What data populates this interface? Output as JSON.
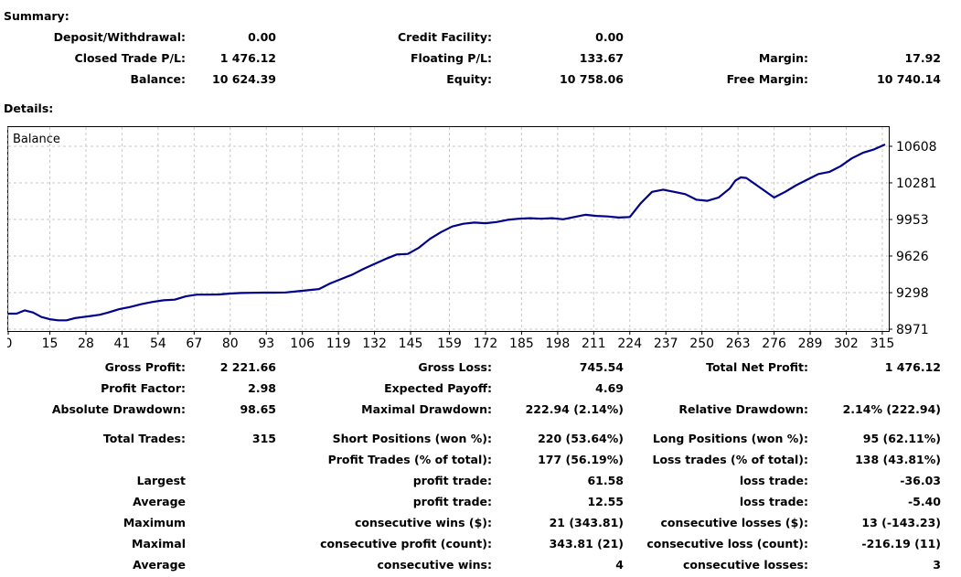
{
  "summary": {
    "heading": "Summary:",
    "deposit_withdrawal": {
      "label": "Deposit/Withdrawal:",
      "value": "0.00"
    },
    "credit_facility": {
      "label": "Credit Facility:",
      "value": "0.00"
    },
    "closed_trade_pl": {
      "label": "Closed Trade P/L:",
      "value": "1 476.12"
    },
    "floating_pl": {
      "label": "Floating P/L:",
      "value": "133.67"
    },
    "margin": {
      "label": "Margin:",
      "value": "17.92"
    },
    "balance": {
      "label": "Balance:",
      "value": "10 624.39"
    },
    "equity": {
      "label": "Equity:",
      "value": "10 758.06"
    },
    "free_margin": {
      "label": "Free Margin:",
      "value": "10 740.14"
    }
  },
  "details": {
    "heading": "Details:",
    "gross_profit": {
      "label": "Gross Profit:",
      "value": "2 221.66"
    },
    "gross_loss": {
      "label": "Gross Loss:",
      "value": "745.54"
    },
    "total_net_profit": {
      "label": "Total Net Profit:",
      "value": "1 476.12"
    },
    "profit_factor": {
      "label": "Profit Factor:",
      "value": "2.98"
    },
    "expected_payoff": {
      "label": "Expected Payoff:",
      "value": "4.69"
    },
    "absolute_drawdown": {
      "label": "Absolute Drawdown:",
      "value": "98.65"
    },
    "maximal_drawdown": {
      "label": "Maximal Drawdown:",
      "value": "222.94 (2.14%)"
    },
    "relative_drawdown": {
      "label": "Relative Drawdown:",
      "value": "2.14% (222.94)"
    },
    "total_trades": {
      "label": "Total Trades:",
      "value": "315"
    },
    "short_positions": {
      "label": "Short Positions (won %):",
      "value": "220 (53.64%)"
    },
    "long_positions": {
      "label": "Long Positions (won %):",
      "value": "95 (62.11%)"
    },
    "profit_trades": {
      "label": "Profit Trades (% of total):",
      "value": "177 (56.19%)"
    },
    "loss_trades": {
      "label": "Loss trades (% of total):",
      "value": "138 (43.81%)"
    },
    "largest": {
      "label": "Largest",
      "profit_label": "profit trade:",
      "profit_value": "61.58",
      "loss_label": "loss trade:",
      "loss_value": "-36.03"
    },
    "average": {
      "label": "Average",
      "profit_label": "profit trade:",
      "profit_value": "12.55",
      "loss_label": "loss trade:",
      "loss_value": "-5.40"
    },
    "maximum": {
      "label": "Maximum",
      "profit_label": "consecutive wins ($):",
      "profit_value": "21 (343.81)",
      "loss_label": "consecutive losses ($):",
      "loss_value": "13 (-143.23)"
    },
    "maximal": {
      "label": "Maximal",
      "profit_label": "consecutive profit (count):",
      "profit_value": "343.81 (21)",
      "loss_label": "consecutive loss (count):",
      "loss_value": "-216.19 (11)"
    },
    "average_consec": {
      "label": "Average",
      "profit_label": "consecutive wins:",
      "profit_value": "4",
      "loss_label": "consecutive losses:",
      "loss_value": "3"
    }
  },
  "chart_data": {
    "type": "line",
    "legend": "Balance",
    "series": [
      {
        "name": "Balance",
        "color": "#00008b"
      }
    ],
    "x": [
      0,
      3,
      6,
      9,
      12,
      15,
      18,
      21,
      24,
      27,
      30,
      33,
      36,
      40,
      44,
      48,
      52,
      56,
      60,
      64,
      68,
      72,
      76,
      80,
      84,
      88,
      92,
      96,
      100,
      104,
      108,
      112,
      116,
      120,
      124,
      128,
      132,
      136,
      140,
      144,
      148,
      152,
      156,
      160,
      164,
      168,
      172,
      176,
      180,
      184,
      188,
      192,
      196,
      200,
      204,
      208,
      212,
      216,
      220,
      224,
      228,
      232,
      236,
      240,
      244,
      248,
      252,
      256,
      260,
      262,
      264,
      266,
      268,
      272,
      276,
      280,
      284,
      288,
      292,
      296,
      300,
      304,
      308,
      312,
      316
    ],
    "y": [
      9110,
      9110,
      9140,
      9120,
      9080,
      9060,
      9050,
      9050,
      9070,
      9080,
      9090,
      9100,
      9120,
      9150,
      9170,
      9195,
      9215,
      9230,
      9235,
      9265,
      9280,
      9280,
      9282,
      9290,
      9295,
      9297,
      9298,
      9298,
      9300,
      9310,
      9320,
      9330,
      9380,
      9420,
      9460,
      9510,
      9555,
      9600,
      9640,
      9645,
      9700,
      9780,
      9840,
      9890,
      9915,
      9925,
      9920,
      9930,
      9950,
      9960,
      9965,
      9960,
      9965,
      9955,
      9975,
      9995,
      9985,
      9980,
      9970,
      9975,
      10100,
      10200,
      10220,
      10200,
      10180,
      10130,
      10120,
      10150,
      10230,
      10300,
      10330,
      10325,
      10290,
      10220,
      10150,
      10200,
      10260,
      10310,
      10360,
      10380,
      10430,
      10500,
      10550,
      10580,
      10624
    ],
    "x_ticks": [
      0,
      15,
      28,
      41,
      54,
      67,
      80,
      93,
      106,
      119,
      132,
      145,
      159,
      172,
      185,
      198,
      211,
      224,
      237,
      250,
      263,
      276,
      289,
      302,
      315
    ],
    "y_ticks": [
      8971,
      9298,
      9626,
      9953,
      10281,
      10608
    ],
    "xlim": [
      0,
      317
    ],
    "ylim": [
      8971,
      10608
    ],
    "grid": true
  }
}
